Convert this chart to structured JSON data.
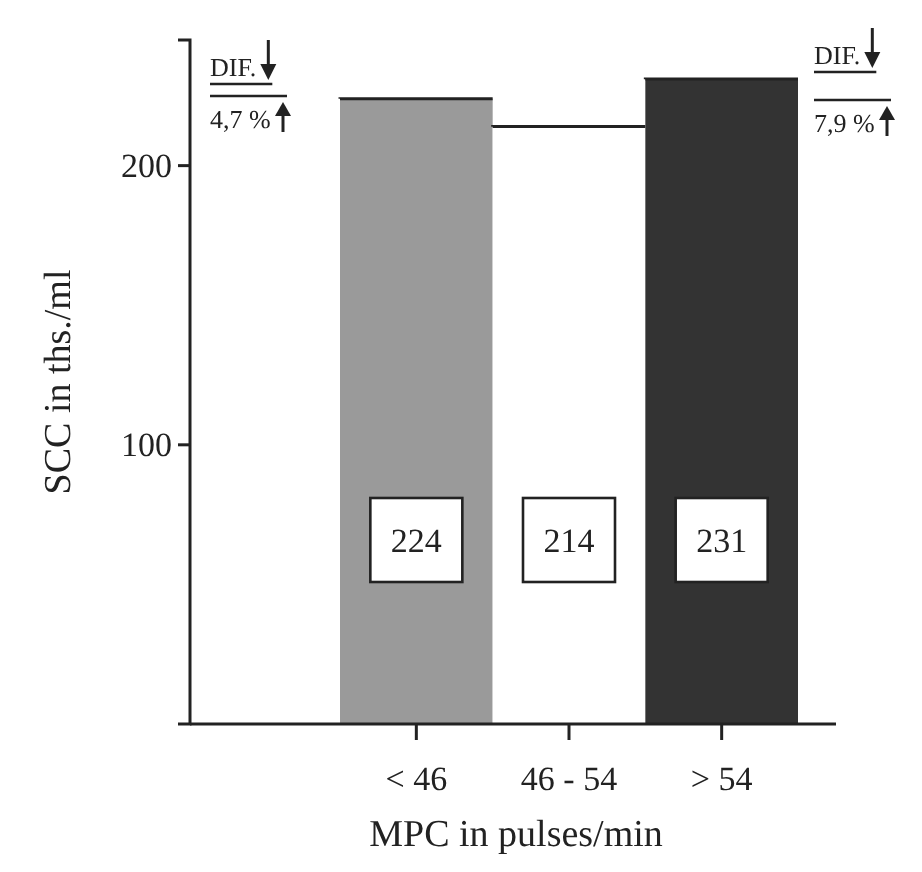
{
  "chart_data": {
    "type": "bar",
    "categories": [
      "< 46",
      "46 - 54",
      "> 54"
    ],
    "values": [
      224,
      214,
      231
    ],
    "colors": [
      "#9a9a9a",
      "#ffffff",
      "#333333"
    ],
    "xlabel": "MPC in pulses/min",
    "ylabel": "SCC in ths./ml",
    "ylim": [
      0,
      245
    ],
    "yticks": [
      100,
      200
    ],
    "data_labels": true,
    "annotations": [
      "DIF.",
      "4,7 %",
      "DIF.",
      "7,9 %"
    ]
  }
}
